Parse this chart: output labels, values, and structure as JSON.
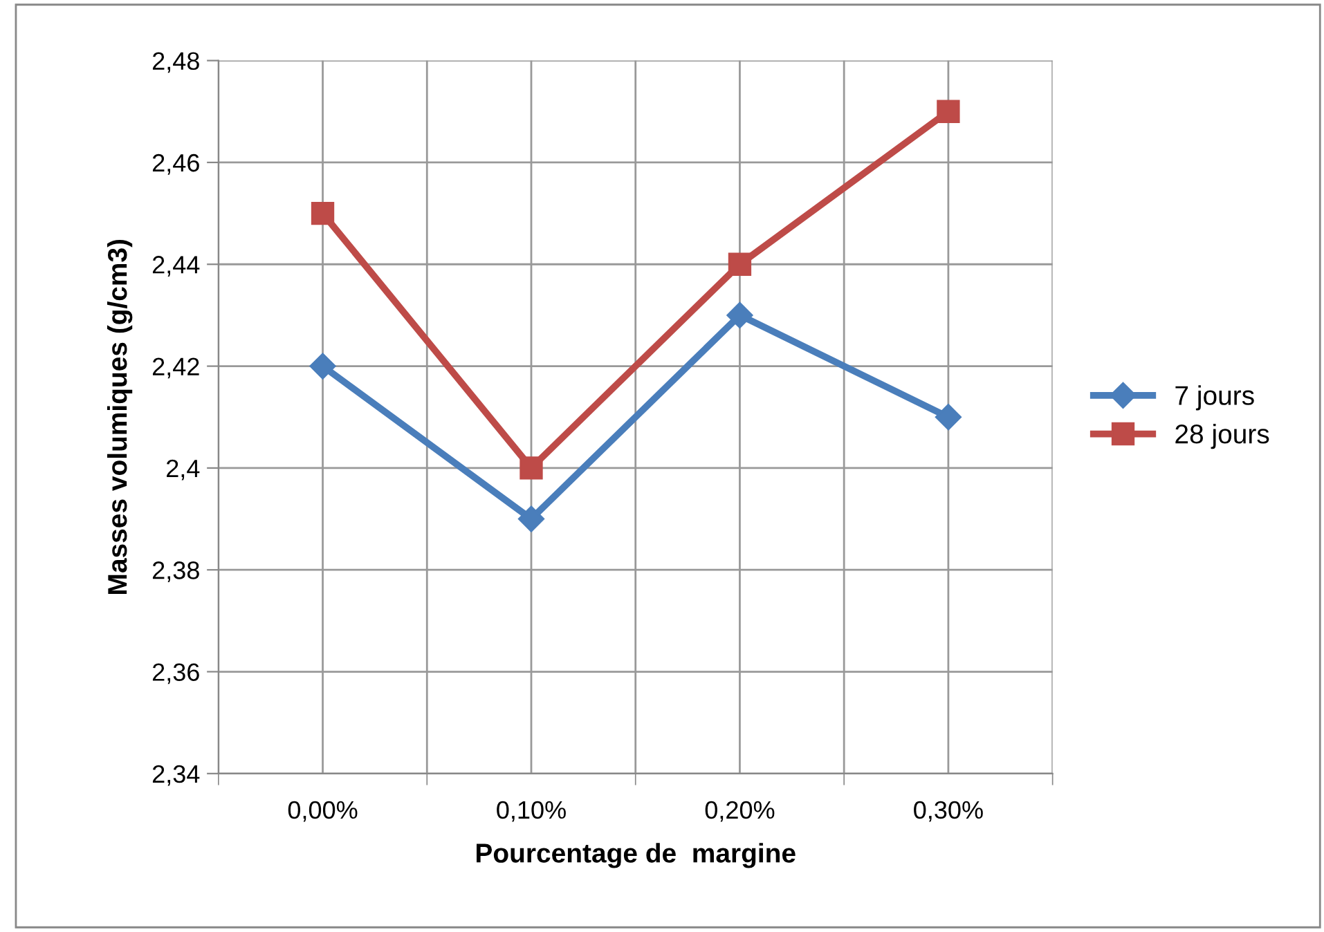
{
  "chart_data": {
    "type": "line",
    "xlabel": "Pourcentage de  margine",
    "ylabel": "Masses volumiques (g/cm3)",
    "categories": [
      "0,00%",
      "0,10%",
      "0,20%",
      "0,30%"
    ],
    "series": [
      {
        "name": "7 jours",
        "color": "#4a7ebb",
        "marker": "diamond",
        "values": [
          2.42,
          2.39,
          2.43,
          2.41
        ]
      },
      {
        "name": "28 jours",
        "color": "#be4b48",
        "marker": "square",
        "values": [
          2.45,
          2.4,
          2.44,
          2.47
        ]
      }
    ],
    "ylim": [
      2.34,
      2.48
    ],
    "yticks": [
      {
        "value": 2.34,
        "label": "2,34"
      },
      {
        "value": 2.36,
        "label": "2,36"
      },
      {
        "value": 2.38,
        "label": "2,38"
      },
      {
        "value": 2.4,
        "label": "2,4"
      },
      {
        "value": 2.42,
        "label": "2,42"
      },
      {
        "value": 2.44,
        "label": "2,44"
      },
      {
        "value": 2.46,
        "label": "2,46"
      },
      {
        "value": 2.48,
        "label": "2,48"
      }
    ],
    "grid": true,
    "legend": "right",
    "line_style": "solid"
  }
}
